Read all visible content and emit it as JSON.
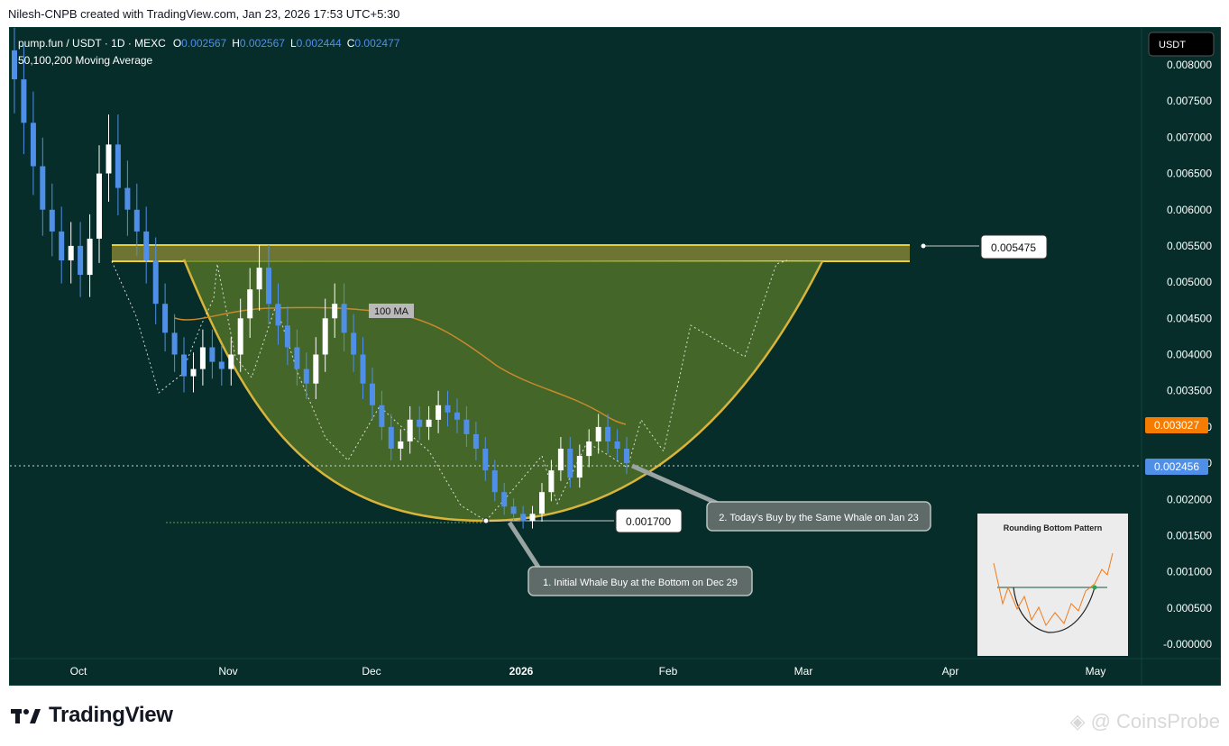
{
  "header": {
    "text": "Nilesh-CNPB created with TradingView.com, Jan 23, 2026 17:53 UTC+5:30"
  },
  "legend": {
    "symbol": "pump.fun / USDT · 1D · MEXC",
    "o_label": "O",
    "o_value": "0.002567",
    "h_label": "H",
    "h_value": "0.002567",
    "l_label": "L",
    "l_value": "0.002444",
    "c_label": "C",
    "c_value": "0.002477",
    "indicator": "50,100,200 Moving Average"
  },
  "currency_button": "USDT",
  "colors": {
    "background": "#062d2a",
    "candle": "#4f8fe8",
    "candle_up": "#ffffff",
    "curve": "#d8b43a",
    "fill": "#5a7a2a",
    "ma": "#c98a2c",
    "current_price_badge": "#4f8fe8",
    "ma_price_badge": "#f57c00"
  },
  "price_labels": {
    "current": "0.002456",
    "ma": "0.003027"
  },
  "callouts": {
    "resistance": "0.005475",
    "bottom": "0.001700",
    "ma_label": "100 MA",
    "note1": "1. Initial Whale Buy at the Bottom on Dec 29",
    "note2": "2. Today's Buy by the Same Whale on Jan 23"
  },
  "inset": {
    "title": "Rounding Bottom Pattern"
  },
  "footer": {
    "brand": "TradingView",
    "watermark": "@ CoinsProbe"
  },
  "chart_data": {
    "type": "candlestick",
    "symbol": "pump.fun / USDT",
    "timeframe": "1D",
    "exchange": "MEXC",
    "y_axis_ticks": [
      "0.008000",
      "0.007500",
      "0.007000",
      "0.006500",
      "0.006000",
      "0.005500",
      "0.005000",
      "0.004500",
      "0.004000",
      "0.003500",
      "0.003000",
      "0.002500",
      "0.002000",
      "0.001500",
      "0.001000",
      "0.000500",
      "-0.000000"
    ],
    "ylim": [
      0,
      0.008
    ],
    "x_axis_labels": [
      "Oct",
      "Nov",
      "Dec",
      "2026",
      "Feb",
      "Mar",
      "Apr",
      "May"
    ],
    "series": [
      {
        "name": "close",
        "type": "candle",
        "values": [
          0.0078,
          0.0072,
          0.0066,
          0.006,
          0.0057,
          0.0053,
          0.0055,
          0.0051,
          0.0056,
          0.0065,
          0.0069,
          0.0063,
          0.006,
          0.0057,
          0.0053,
          0.0047,
          0.0043,
          0.004,
          0.0037,
          0.0038,
          0.0041,
          0.0039,
          0.0038,
          0.004,
          0.0045,
          0.0049,
          0.0052,
          0.0047,
          0.0044,
          0.0041,
          0.0038,
          0.0036,
          0.004,
          0.0045,
          0.0047,
          0.0043,
          0.004,
          0.0036,
          0.0033,
          0.003,
          0.0027,
          0.0028,
          0.0031,
          0.003,
          0.0031,
          0.0033,
          0.0032,
          0.0031,
          0.0029,
          0.0027,
          0.0024,
          0.0021,
          0.0019,
          0.0018,
          0.0017,
          0.0018,
          0.0021,
          0.0024,
          0.0027,
          0.0023,
          0.0026,
          0.0028,
          0.003,
          0.0028,
          0.0027,
          0.0025
        ]
      },
      {
        "name": "100 MA",
        "type": "line",
        "values": [
          0.0046,
          0.0045,
          0.0046,
          0.0046,
          0.0045,
          0.0044,
          0.0041,
          0.0038,
          0.0036,
          0.0034,
          0.0032,
          0.0031,
          0.003
        ]
      }
    ],
    "annotations": [
      {
        "label": "resistance",
        "value": 0.005475
      },
      {
        "label": "bottom",
        "value": 0.0017
      },
      {
        "label": "current price",
        "value": 0.002456
      },
      {
        "label": "100 MA price",
        "value": 0.003027
      }
    ]
  }
}
